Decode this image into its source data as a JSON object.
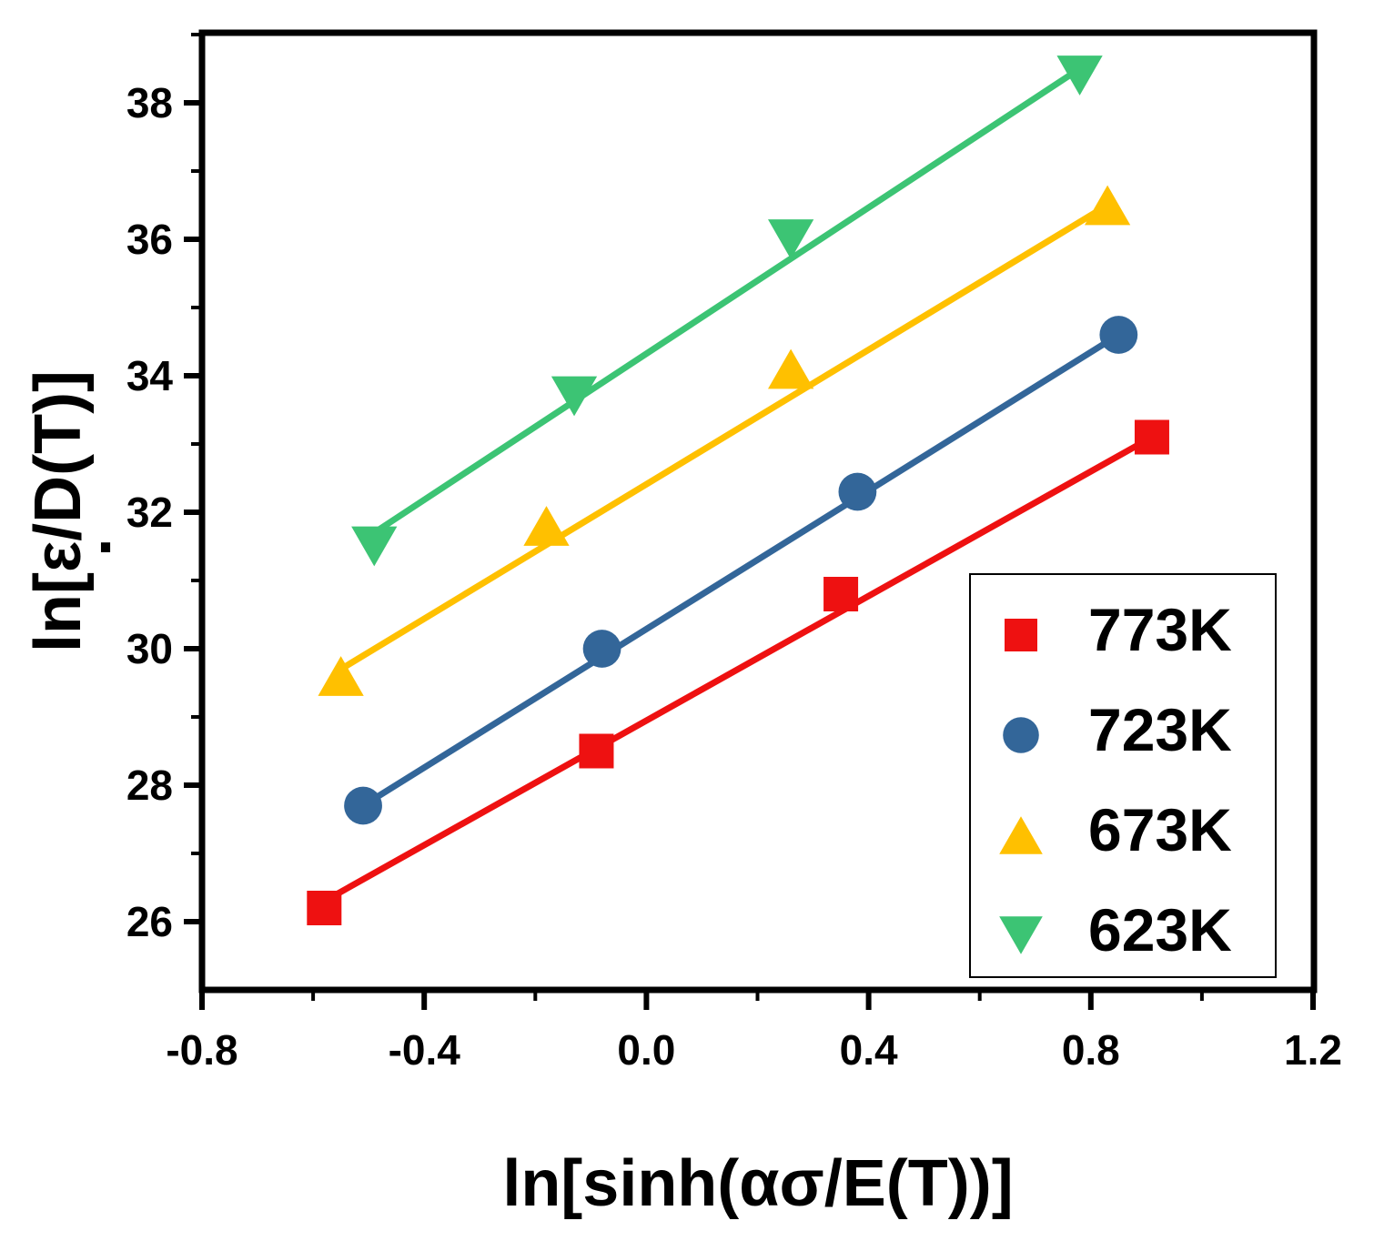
{
  "chart_data": {
    "type": "scatter",
    "title": "",
    "xlabel": "ln[sinh(ασ/E(T))]",
    "ylabel": "ln[ε/D(T)]",
    "ylabel_dot": "·",
    "xlim": [
      -0.8,
      1.2
    ],
    "ylim": [
      25,
      39
    ],
    "x_ticks": [
      -0.8,
      -0.4,
      0.0,
      0.4,
      0.8,
      1.2
    ],
    "x_tick_labels": [
      "-0.8",
      "-0.4",
      "0.0",
      "0.4",
      "0.8",
      "1.2"
    ],
    "y_ticks": [
      26,
      28,
      30,
      32,
      34,
      36,
      38
    ],
    "y_tick_labels": [
      "26",
      "28",
      "30",
      "32",
      "34",
      "36",
      "38"
    ],
    "grid": false,
    "legend_position": "bottom-right",
    "series": [
      {
        "name": "773K",
        "color": "#ee1111",
        "marker": "square",
        "x": [
          -0.58,
          -0.09,
          0.35,
          0.91
        ],
        "y": [
          26.2,
          28.5,
          30.8,
          33.1
        ],
        "fit": {
          "x": [
            -0.58,
            0.91
          ],
          "y": [
            26.3,
            33.1
          ]
        }
      },
      {
        "name": "723K",
        "color": "#336699",
        "marker": "circle",
        "x": [
          -0.51,
          -0.08,
          0.38,
          0.85
        ],
        "y": [
          27.7,
          30.0,
          32.3,
          34.6
        ],
        "fit": {
          "x": [
            -0.51,
            0.85
          ],
          "y": [
            27.7,
            34.6
          ]
        }
      },
      {
        "name": "673K",
        "color": "#ffc000",
        "marker": "triangle-up",
        "x": [
          -0.55,
          -0.18,
          0.26,
          0.83
        ],
        "y": [
          29.6,
          31.8,
          34.1,
          36.5
        ],
        "fit": {
          "x": [
            -0.55,
            0.83
          ],
          "y": [
            29.7,
            36.5
          ]
        }
      },
      {
        "name": "623K",
        "color": "#3cc474",
        "marker": "triangle-down",
        "x": [
          -0.49,
          -0.13,
          0.26,
          0.78
        ],
        "y": [
          31.5,
          33.7,
          36.0,
          38.4
        ],
        "fit": {
          "x": [
            -0.49,
            0.78
          ],
          "y": [
            31.7,
            38.5
          ]
        }
      }
    ]
  }
}
